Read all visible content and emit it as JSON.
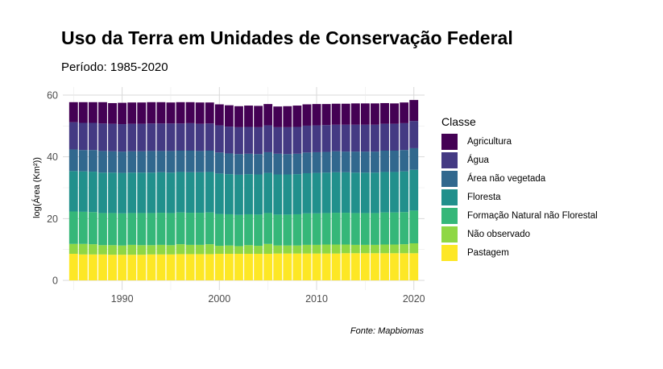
{
  "chart_data": {
    "type": "bar",
    "stacked": true,
    "title": "Uso da Terra em Unidades de Conservação Federal",
    "subtitle": "Período: 1985-2020",
    "xlabel": "",
    "ylabel": "log(Área (Km²))",
    "caption": "Fonte: Mapbiomas",
    "ylim": [
      0,
      60
    ],
    "xlim": [
      1983.9,
      2021.1
    ],
    "y_ticks": [
      0,
      20,
      40,
      60
    ],
    "x_ticks": [
      1990,
      2000,
      2010,
      2020
    ],
    "grid": true,
    "legend_title": "Classe",
    "legend_position": "right",
    "x": [
      1985,
      1986,
      1987,
      1988,
      1989,
      1990,
      1991,
      1992,
      1993,
      1994,
      1995,
      1996,
      1997,
      1998,
      1999,
      2000,
      2001,
      2002,
      2003,
      2004,
      2005,
      2006,
      2007,
      2008,
      2009,
      2010,
      2011,
      2012,
      2013,
      2014,
      2015,
      2016,
      2017,
      2018,
      2019,
      2020
    ],
    "series": [
      {
        "name": "Pastagem",
        "color": "#FDE725",
        "values": [
          8.6,
          8.4,
          8.4,
          8.4,
          8.3,
          8.3,
          8.3,
          8.3,
          8.4,
          8.4,
          8.4,
          8.5,
          8.5,
          8.5,
          8.5,
          8.6,
          8.6,
          8.6,
          8.6,
          8.6,
          8.6,
          8.7,
          8.7,
          8.7,
          8.7,
          8.7,
          8.7,
          8.7,
          8.8,
          8.8,
          8.8,
          8.8,
          8.8,
          8.8,
          8.8,
          8.8
        ]
      },
      {
        "name": "Não observado",
        "color": "#8FD744",
        "values": [
          3.2,
          3.4,
          3.3,
          3.0,
          3.1,
          3.0,
          3.2,
          3.1,
          3.0,
          3.1,
          3.0,
          3.2,
          3.0,
          3.0,
          3.2,
          2.6,
          2.7,
          2.5,
          2.8,
          2.6,
          3.2,
          2.6,
          2.6,
          2.6,
          2.8,
          2.8,
          2.9,
          2.9,
          2.8,
          2.7,
          2.7,
          2.7,
          2.8,
          2.8,
          2.9,
          3.2
        ]
      },
      {
        "name": "Formação Natural não Florestal",
        "color": "#35B779",
        "values": [
          10.5,
          10.4,
          10.4,
          10.4,
          10.4,
          10.4,
          10.3,
          10.4,
          10.4,
          10.4,
          10.4,
          10.3,
          10.4,
          10.4,
          10.3,
          10.3,
          10.1,
          10.1,
          10.0,
          10.1,
          10.0,
          10.0,
          10.0,
          10.1,
          10.2,
          10.2,
          10.2,
          10.3,
          10.3,
          10.3,
          10.3,
          10.3,
          10.4,
          10.4,
          10.4,
          10.6
        ]
      },
      {
        "name": "Floresta",
        "color": "#21908C",
        "values": [
          13.1,
          13.1,
          13.1,
          13.1,
          13.1,
          13.1,
          13.1,
          13.1,
          13.1,
          13.1,
          13.1,
          13.1,
          13.1,
          13.1,
          13.1,
          13.1,
          13.0,
          13.0,
          13.0,
          13.0,
          13.0,
          13.0,
          13.0,
          13.0,
          13.0,
          13.1,
          13.1,
          13.1,
          13.1,
          13.1,
          13.1,
          13.1,
          13.1,
          13.1,
          13.2,
          13.2
        ]
      },
      {
        "name": "Área não vegetada",
        "color": "#31688E",
        "values": [
          7.0,
          6.9,
          7.0,
          7.0,
          6.9,
          6.9,
          6.9,
          6.9,
          7.0,
          6.9,
          7.0,
          6.9,
          7.0,
          6.9,
          6.9,
          6.8,
          6.7,
          6.7,
          6.6,
          6.6,
          6.7,
          6.7,
          6.6,
          6.6,
          6.7,
          6.7,
          6.7,
          6.8,
          6.7,
          6.8,
          6.8,
          6.8,
          6.9,
          6.9,
          6.9,
          7.0
        ]
      },
      {
        "name": "Água",
        "color": "#443A83",
        "values": [
          8.8,
          8.8,
          8.8,
          8.9,
          8.9,
          8.9,
          8.9,
          8.9,
          8.9,
          8.9,
          8.9,
          8.8,
          8.9,
          8.8,
          8.8,
          8.8,
          8.7,
          8.7,
          8.7,
          8.7,
          8.7,
          8.6,
          8.7,
          8.7,
          8.7,
          8.7,
          8.7,
          8.6,
          8.7,
          8.7,
          8.7,
          8.7,
          8.7,
          8.7,
          8.7,
          8.8
        ]
      },
      {
        "name": "Agricultura",
        "color": "#440154",
        "values": [
          6.5,
          6.7,
          6.7,
          6.9,
          6.7,
          6.9,
          6.9,
          6.9,
          6.9,
          6.9,
          6.8,
          6.9,
          6.8,
          6.9,
          6.8,
          6.8,
          6.9,
          6.8,
          6.9,
          6.9,
          6.9,
          6.7,
          6.8,
          6.9,
          6.9,
          6.9,
          6.8,
          6.8,
          6.8,
          6.9,
          6.9,
          6.9,
          6.7,
          6.6,
          6.7,
          6.8
        ]
      }
    ],
    "legend_order": [
      "Agricultura",
      "Água",
      "Área não vegetada",
      "Floresta",
      "Formação Natural não Florestal",
      "Não observado",
      "Pastagem"
    ]
  }
}
